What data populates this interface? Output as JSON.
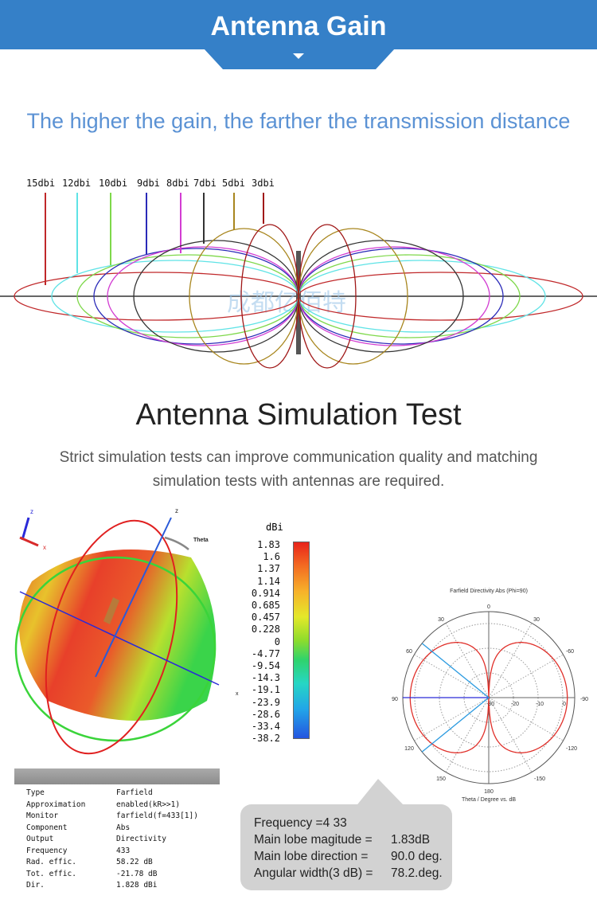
{
  "header": {
    "title": "Antenna Gain",
    "accent": "#3580c8"
  },
  "gain_section": {
    "subtitle": "The higher the gain, the farther the transmission distance",
    "watermark": "成都亿佰特",
    "lobes": [
      {
        "label": "15dbi",
        "color": "#c0282a"
      },
      {
        "label": "12dbi",
        "color": "#5fe3e6"
      },
      {
        "label": "10dbi",
        "color": "#7ed84a"
      },
      {
        "label": "9dbi",
        "color": "#2a2ab8"
      },
      {
        "label": "8dbi",
        "color": "#d23cd2"
      },
      {
        "label": "7dbi",
        "color": "#333333"
      },
      {
        "label": "5dbi",
        "color": "#a8861e"
      },
      {
        "label": "3dbi",
        "color": "#a01818"
      }
    ]
  },
  "simulation": {
    "title": "Antenna Simulation Test",
    "description": "Strict simulation tests can improve communication quality and matching simulation tests with antennas are required.",
    "axis_labels": {
      "z_small": "z",
      "x_small": "x",
      "z": "z",
      "theta": "Theta",
      "x": "x"
    },
    "scale": {
      "unit": "dBi",
      "ticks": [
        "1.83",
        "1.6",
        "1.37",
        "1.14",
        "0.914",
        "0.685",
        "0.457",
        "0.228",
        "0",
        "-4.77",
        "-9.54",
        "-14.3",
        "-19.1",
        "-23.9",
        "-28.6",
        "-33.4",
        "-38.2"
      ]
    },
    "table": [
      {
        "key": "Type",
        "value": "Farfield"
      },
      {
        "key": "Approximation",
        "value": "enabled(kR>>1)"
      },
      {
        "key": "Monitor",
        "value": "farfield(f=433[1])"
      },
      {
        "key": "Component",
        "value": "Abs"
      },
      {
        "key": "Output",
        "value": "Directivity"
      },
      {
        "key": "Frequency",
        "value": "433"
      },
      {
        "key": "Rad. effic.",
        "value": "58.22 dB"
      },
      {
        "key": "Tot. effic.",
        "value": "-21.78 dB"
      },
      {
        "key": "Dir.",
        "value": "1.828 dBi"
      }
    ],
    "polar": {
      "title": "Farfield Directivity Abs (Phi=90)",
      "xlabel": "Theta / Degree vs. dB",
      "angle_labels": {
        "top": "0",
        "tl30": "30",
        "tr30": "30",
        "l60": "60",
        "r60": "-60",
        "l90": "90",
        "r90": "-90",
        "l120": "120",
        "r120": "-120",
        "l150": "150",
        "r150": "-150",
        "bottom": "180"
      },
      "radial_labels": [
        "-30",
        "-20",
        "-10",
        "0"
      ],
      "main_lobe_db": 1.83,
      "main_lobe_direction_deg": 90,
      "beamwidth_deg": 78.2
    },
    "bubble": [
      {
        "key": "Frequency =4 33",
        "value": ""
      },
      {
        "key": "Main lobe magitude  =",
        "value": "1.83dB"
      },
      {
        "key": "Main lobe direction  =",
        "value": "90.0 deg."
      },
      {
        "key": "Angular width(3 dB) =",
        "value": "78.2.deg."
      }
    ]
  }
}
